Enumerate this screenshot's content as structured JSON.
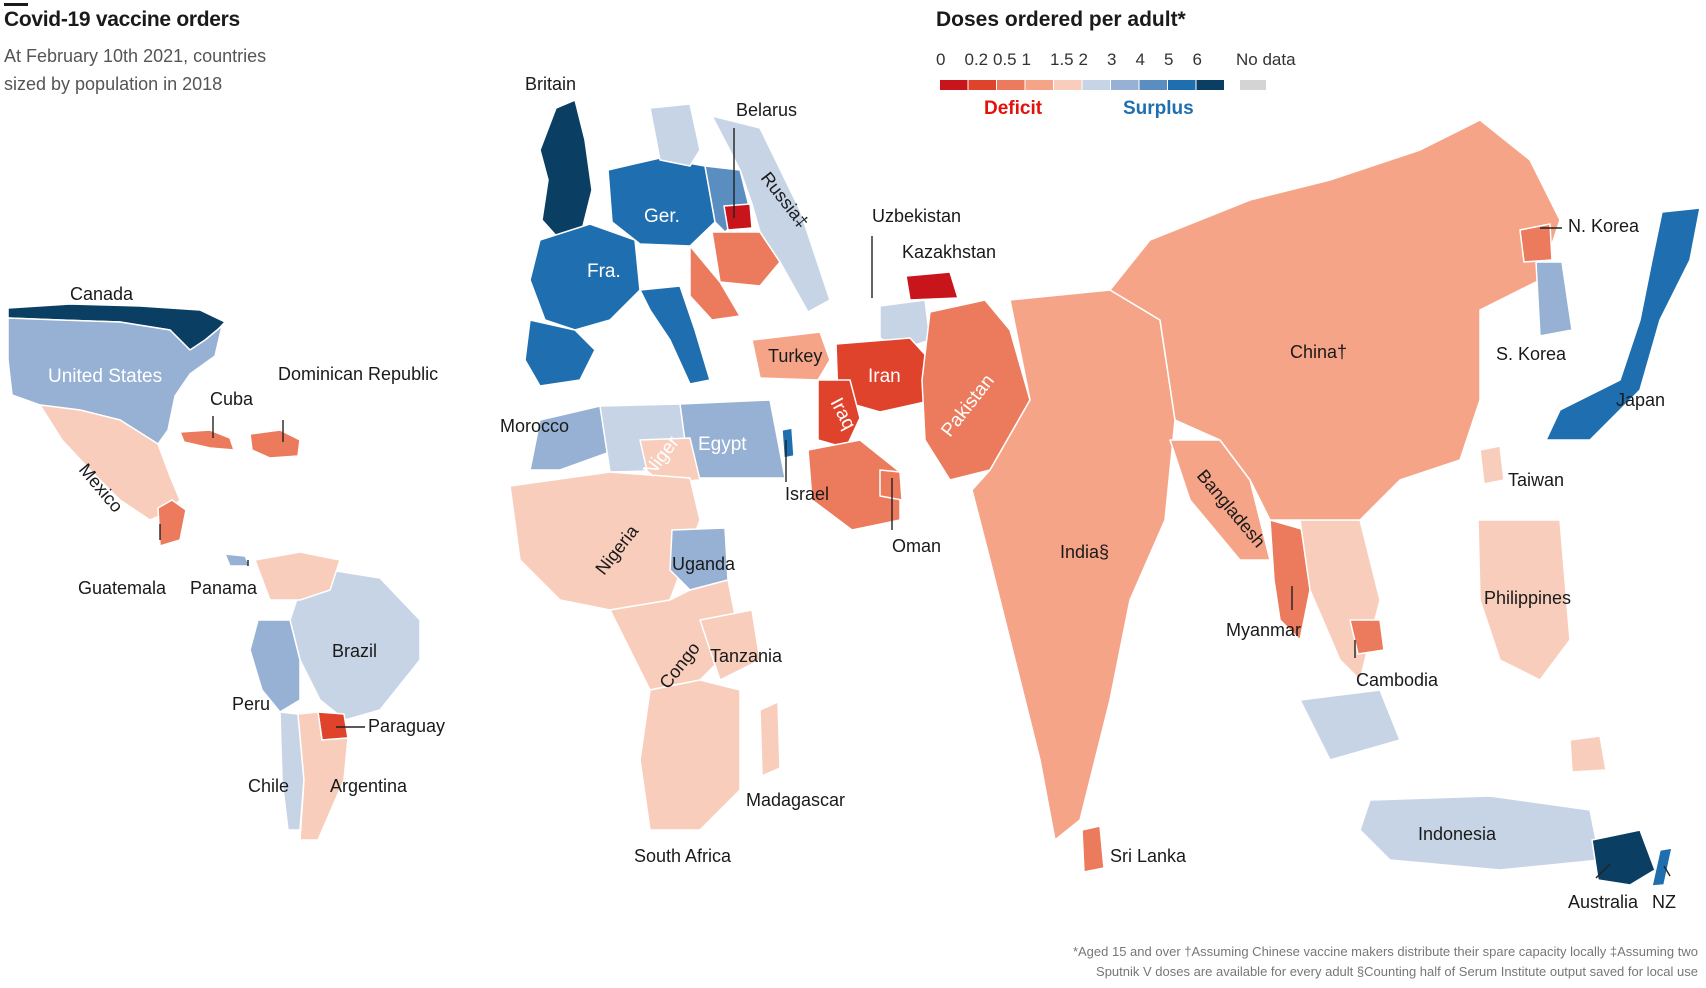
{
  "title": "Covid-19 vaccine orders",
  "subtitle": "At February 10th 2021, countries sized by population in 2018",
  "legend": {
    "title": "Doses ordered per adult*",
    "ticks": [
      "0",
      "0.2",
      "0.5",
      "1",
      "1.5",
      "2",
      "3",
      "4",
      "5",
      "6"
    ],
    "no_data_label": "No data",
    "deficit_label": "Deficit",
    "surplus_label": "Surplus",
    "bins": [
      {
        "range": "0-0.2",
        "color": "#c8141b"
      },
      {
        "range": "0.2-0.5",
        "color": "#e0432c"
      },
      {
        "range": "0.5-1",
        "color": "#ec7a5c"
      },
      {
        "range": "1-1.5",
        "color": "#f5a488"
      },
      {
        "range": "1.5-2",
        "color": "#f8cdbb"
      },
      {
        "range": "2-3",
        "color": "#c7d4e6"
      },
      {
        "range": "3-4",
        "color": "#96b1d4"
      },
      {
        "range": "4-5",
        "color": "#5b8ec0"
      },
      {
        "range": "5-6",
        "color": "#1f6fb0"
      },
      {
        "range": "6+",
        "color": "#0b3e63"
      }
    ],
    "no_data_color": "#d4d4d4"
  },
  "countries": [
    {
      "label": "Canada",
      "bin": "6+"
    },
    {
      "label": "United States",
      "bin": "3-4"
    },
    {
      "label": "Mexico",
      "bin": "1.5-2"
    },
    {
      "label": "Cuba",
      "bin": "0.5-1"
    },
    {
      "label": "Dominican Republic",
      "bin": "0.5-1"
    },
    {
      "label": "Guatemala",
      "bin": "0.5-1"
    },
    {
      "label": "Panama",
      "bin": "3-4"
    },
    {
      "label": "Brazil",
      "bin": "2-3"
    },
    {
      "label": "Peru",
      "bin": "3-4"
    },
    {
      "label": "Paraguay",
      "bin": "0.2-0.5"
    },
    {
      "label": "Chile",
      "bin": "2-3"
    },
    {
      "label": "Argentina",
      "bin": "1.5-2"
    },
    {
      "label": "Britain",
      "bin": "6+"
    },
    {
      "label": "Belarus",
      "bin": "0-0.2"
    },
    {
      "label": "Russia‡",
      "bin": "2-3"
    },
    {
      "label": "Ger.",
      "bin": "5-6"
    },
    {
      "label": "Fra.",
      "bin": "5-6"
    },
    {
      "label": "Uzbekistan",
      "bin": "2-3"
    },
    {
      "label": "Kazakhstan",
      "bin": "0-0.2"
    },
    {
      "label": "Turkey",
      "bin": "1-1.5"
    },
    {
      "label": "Iran",
      "bin": "0.2-0.5"
    },
    {
      "label": "Iraq",
      "bin": "0.2-0.5"
    },
    {
      "label": "Pakistan",
      "bin": "0.5-1"
    },
    {
      "label": "Morocco",
      "bin": "3-4"
    },
    {
      "label": "Niger",
      "bin": "1.5-2"
    },
    {
      "label": "Egypt",
      "bin": "3-4"
    },
    {
      "label": "Israel",
      "bin": "5-6"
    },
    {
      "label": "Oman",
      "bin": "0.5-1"
    },
    {
      "label": "Nigeria",
      "bin": "1.5-2"
    },
    {
      "label": "Uganda",
      "bin": "3-4"
    },
    {
      "label": "Congo",
      "bin": "1.5-2"
    },
    {
      "label": "Tanzania",
      "bin": "1.5-2"
    },
    {
      "label": "Madagascar",
      "bin": "1.5-2"
    },
    {
      "label": "South Africa",
      "bin": "1.5-2"
    },
    {
      "label": "India§",
      "bin": "1-1.5"
    },
    {
      "label": "Sri Lanka",
      "bin": "0.5-1"
    },
    {
      "label": "Bangladesh",
      "bin": "1-1.5"
    },
    {
      "label": "Myanmar",
      "bin": "0.5-1"
    },
    {
      "label": "Cambodia",
      "bin": "0.5-1"
    },
    {
      "label": "China†",
      "bin": "1-1.5"
    },
    {
      "label": "N. Korea",
      "bin": "0.5-1"
    },
    {
      "label": "S. Korea",
      "bin": "3-4"
    },
    {
      "label": "Japan",
      "bin": "5-6"
    },
    {
      "label": "Taiwan",
      "bin": "1.5-2"
    },
    {
      "label": "Philippines",
      "bin": "1.5-2"
    },
    {
      "label": "Indonesia",
      "bin": "2-3"
    },
    {
      "label": "Australia",
      "bin": "6+"
    },
    {
      "label": "NZ",
      "bin": "5-6"
    }
  ],
  "footnote": {
    "line1": "*Aged 15 and over †Assuming Chinese vaccine makers distribute their spare capacity locally ‡Assuming two",
    "line2": "Sputnik V doses are available for every adult §Counting half of Serum Institute output saved for local use"
  }
}
